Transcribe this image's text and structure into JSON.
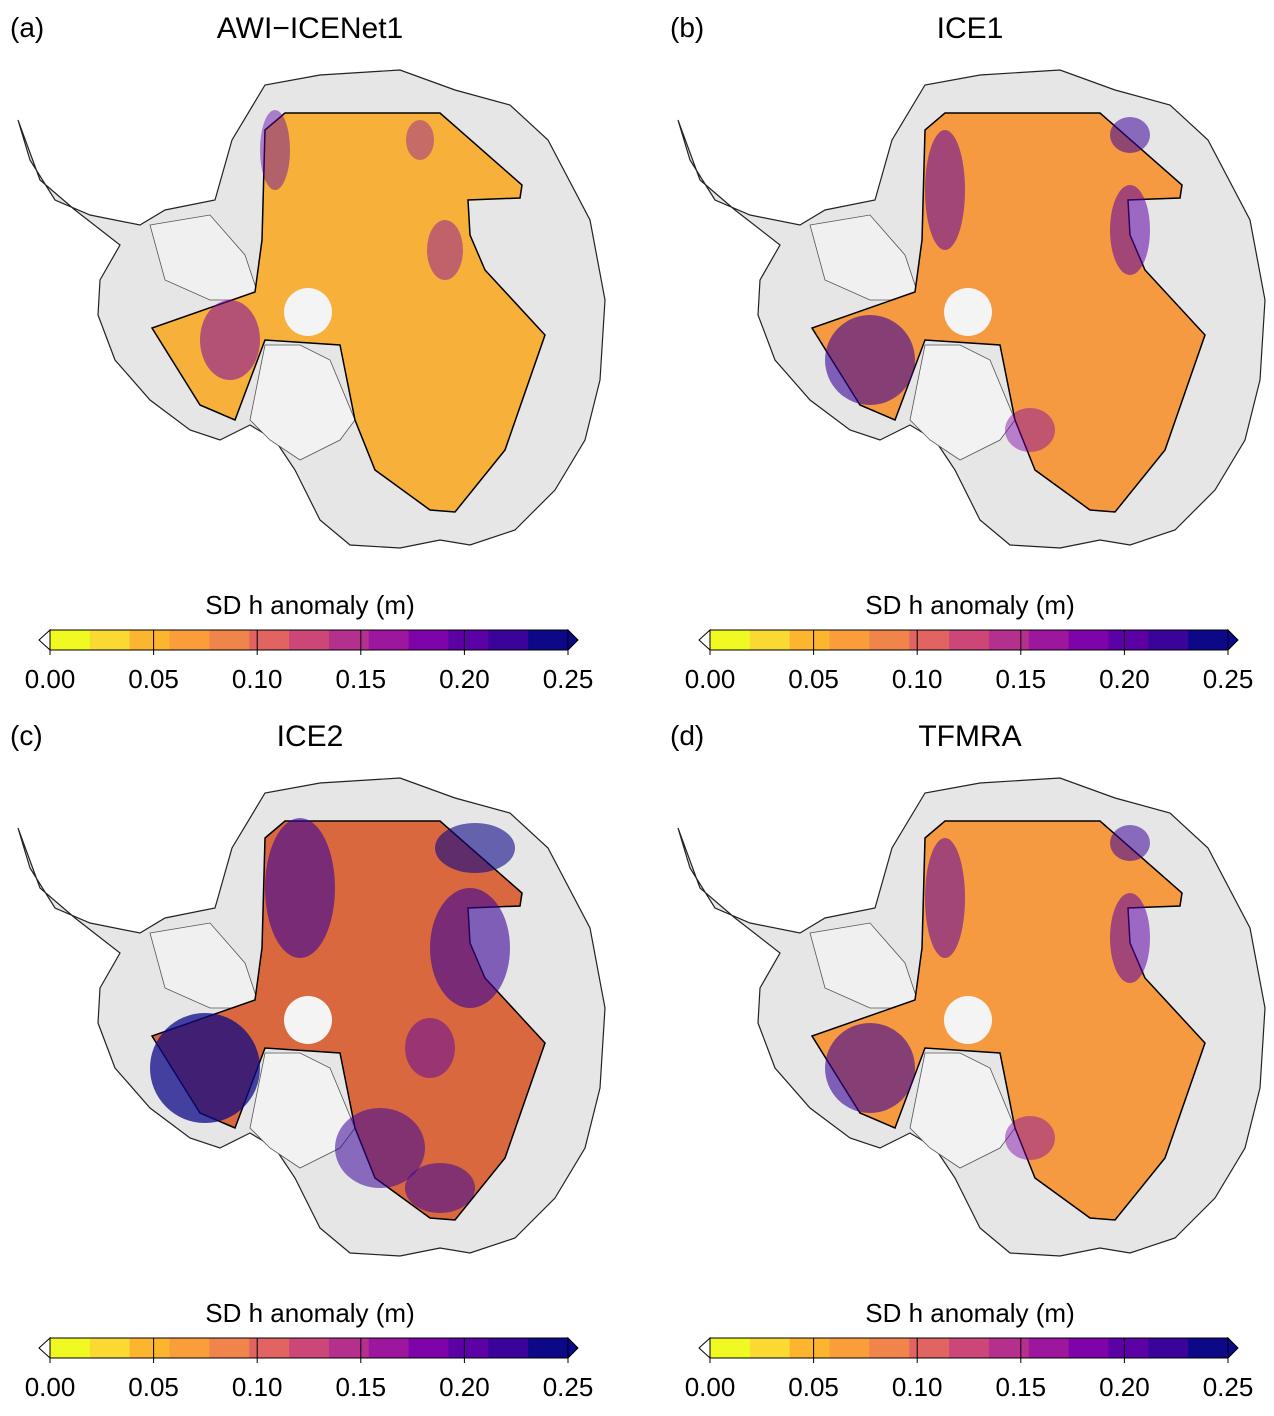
{
  "panels": [
    {
      "label": "(a)",
      "title": "AWI−ICENet1",
      "style": "low"
    },
    {
      "label": "(b)",
      "title": "ICE1",
      "style": "mid"
    },
    {
      "label": "(c)",
      "title": "ICE2",
      "style": "high"
    },
    {
      "label": "(d)",
      "title": "TFMRA",
      "style": "mid"
    }
  ],
  "colorbar": {
    "title": "SD h anomaly (m)",
    "ticks": [
      "0.00",
      "0.05",
      "0.10",
      "0.15",
      "0.20",
      "0.25"
    ],
    "min": 0,
    "max": 0.25,
    "extend": "both",
    "colormap": "plasma_r",
    "colors": [
      "#f0f921",
      "#f9d932",
      "#fdb42f",
      "#fa9e3b",
      "#f1844b",
      "#e16462",
      "#cc4778",
      "#b52f8c",
      "#9c179e",
      "#7e03a8",
      "#5c01a6",
      "#3a049a",
      "#0d0887"
    ]
  }
}
